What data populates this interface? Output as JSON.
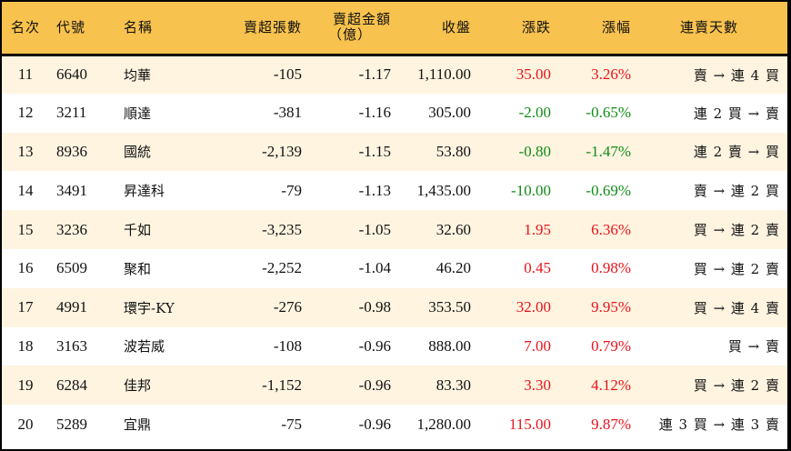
{
  "table": {
    "headers": {
      "rank": "名次",
      "code": "代號",
      "name": "名稱",
      "sell_volume": "賣超張數",
      "sell_amount_line1": "賣超金額",
      "sell_amount_line2": "（億）",
      "close": "收盤",
      "change": "漲跌",
      "change_pct": "漲幅",
      "streak": "連賣天數"
    },
    "colors": {
      "header_bg": "#F8C24E",
      "row_odd": "#FEF4E0",
      "row_even": "#FFFFFF",
      "up": "#E8141C",
      "down": "#118C17"
    },
    "rows": [
      {
        "rank": "11",
        "code": "6640",
        "name": "均華",
        "sell_volume": "-105",
        "sell_amount": "-1.17",
        "close": "1,110.00",
        "change": "35.00",
        "change_pct": "3.26%",
        "direction": "up",
        "streak": "賣 → 連 4 買"
      },
      {
        "rank": "12",
        "code": "3211",
        "name": "順達",
        "sell_volume": "-381",
        "sell_amount": "-1.16",
        "close": "305.00",
        "change": "-2.00",
        "change_pct": "-0.65%",
        "direction": "down",
        "streak": "連 2 買 → 賣"
      },
      {
        "rank": "13",
        "code": "8936",
        "name": "國統",
        "sell_volume": "-2,139",
        "sell_amount": "-1.15",
        "close": "53.80",
        "change": "-0.80",
        "change_pct": "-1.47%",
        "direction": "down",
        "streak": "連 2 賣 → 買"
      },
      {
        "rank": "14",
        "code": "3491",
        "name": "昇達科",
        "sell_volume": "-79",
        "sell_amount": "-1.13",
        "close": "1,435.00",
        "change": "-10.00",
        "change_pct": "-0.69%",
        "direction": "down",
        "streak": "賣 → 連 2 買"
      },
      {
        "rank": "15",
        "code": "3236",
        "name": "千如",
        "sell_volume": "-3,235",
        "sell_amount": "-1.05",
        "close": "32.60",
        "change": "1.95",
        "change_pct": "6.36%",
        "direction": "up",
        "streak": "買 → 連 2 賣"
      },
      {
        "rank": "16",
        "code": "6509",
        "name": "聚和",
        "sell_volume": "-2,252",
        "sell_amount": "-1.04",
        "close": "46.20",
        "change": "0.45",
        "change_pct": "0.98%",
        "direction": "up",
        "streak": "買 → 連 2 賣"
      },
      {
        "rank": "17",
        "code": "4991",
        "name": "環宇-KY",
        "sell_volume": "-276",
        "sell_amount": "-0.98",
        "close": "353.50",
        "change": "32.00",
        "change_pct": "9.95%",
        "direction": "up",
        "streak": "買 → 連 4 賣"
      },
      {
        "rank": "18",
        "code": "3163",
        "name": "波若威",
        "sell_volume": "-108",
        "sell_amount": "-0.96",
        "close": "888.00",
        "change": "7.00",
        "change_pct": "0.79%",
        "direction": "up",
        "streak": "買 → 賣"
      },
      {
        "rank": "19",
        "code": "6284",
        "name": "佳邦",
        "sell_volume": "-1,152",
        "sell_amount": "-0.96",
        "close": "83.30",
        "change": "3.30",
        "change_pct": "4.12%",
        "direction": "up",
        "streak": "買 → 連 2 賣"
      },
      {
        "rank": "20",
        "code": "5289",
        "name": "宜鼎",
        "sell_volume": "-75",
        "sell_amount": "-0.96",
        "close": "1,280.00",
        "change": "115.00",
        "change_pct": "9.87%",
        "direction": "up",
        "streak": "連 3 買 → 連 3 賣"
      }
    ]
  }
}
